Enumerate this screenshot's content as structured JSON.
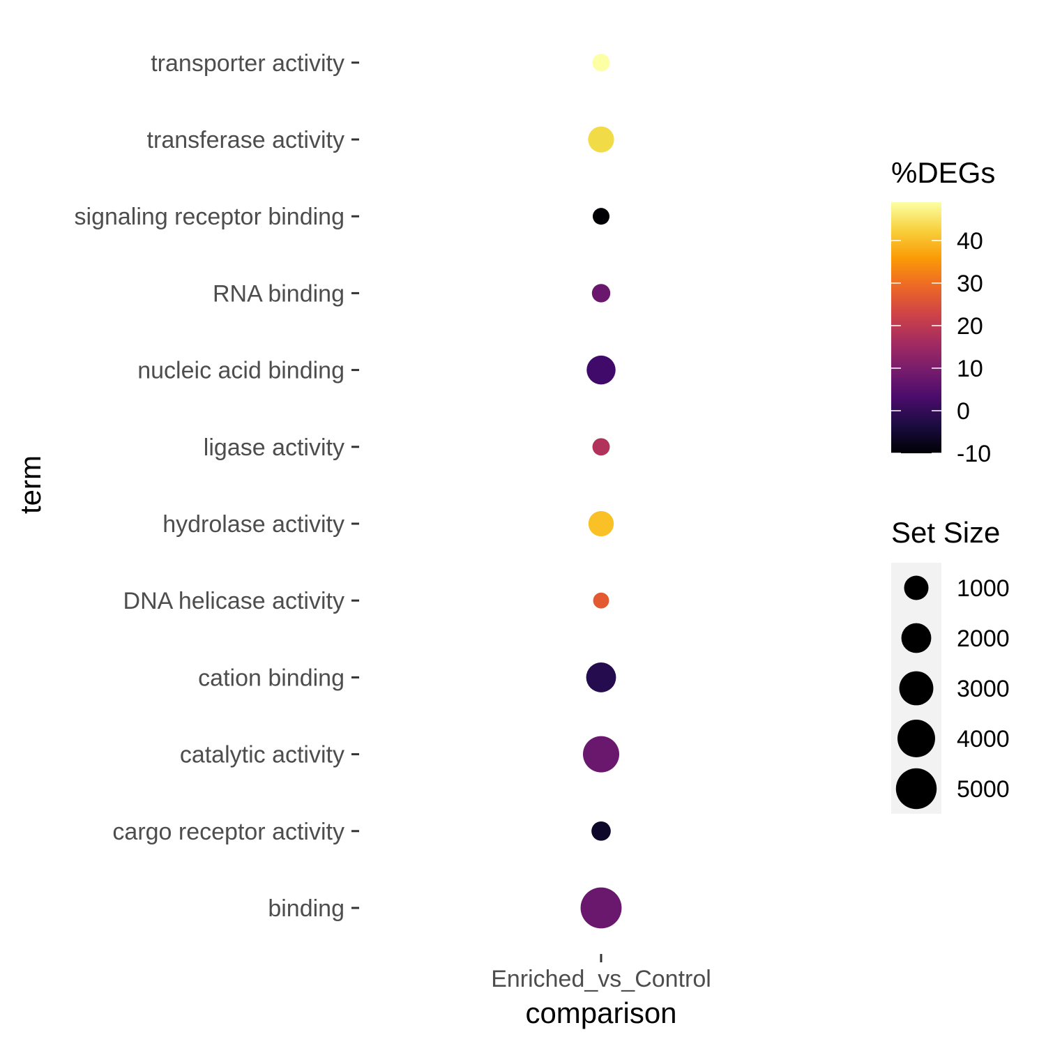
{
  "chart_data": {
    "type": "scatter",
    "x_categories": [
      "Enriched_vs_Control"
    ],
    "y_categories": [
      "binding",
      "cargo receptor activity",
      "catalytic activity",
      "cation binding",
      "DNA helicase activity",
      "hydrolase activity",
      "ligase activity",
      "nucleic acid binding",
      "RNA binding",
      "signaling receptor binding",
      "transferase activity",
      "transporter activity"
    ],
    "points": [
      {
        "x": "Enriched_vs_Control",
        "y": "binding",
        "pct_degs": 9,
        "set_size": 5100,
        "color": "#6a176e"
      },
      {
        "x": "Enriched_vs_Control",
        "y": "cargo receptor activity",
        "pct_degs": -6,
        "set_size": 380,
        "color": "#0d0829"
      },
      {
        "x": "Enriched_vs_Control",
        "y": "catalytic activity",
        "pct_degs": 9,
        "set_size": 3600,
        "color": "#6a176e"
      },
      {
        "x": "Enriched_vs_Control",
        "y": "cation binding",
        "pct_degs": 2,
        "set_size": 2000,
        "color": "#240c4f"
      },
      {
        "x": "Enriched_vs_Control",
        "y": "DNA helicase activity",
        "pct_degs": 28,
        "set_size": 130,
        "color": "#e35932"
      },
      {
        "x": "Enriched_vs_Control",
        "y": "hydrolase activity",
        "pct_degs": 42,
        "set_size": 1150,
        "color": "#fac127"
      },
      {
        "x": "Enriched_vs_Control",
        "y": "ligase activity",
        "pct_degs": 18,
        "set_size": 220,
        "color": "#b1325a"
      },
      {
        "x": "Enriched_vs_Control",
        "y": "nucleic acid binding",
        "pct_degs": 4,
        "set_size": 1800,
        "color": "#3f0a6a"
      },
      {
        "x": "Enriched_vs_Control",
        "y": "RNA binding",
        "pct_degs": 9,
        "set_size": 300,
        "color": "#6a176e"
      },
      {
        "x": "Enriched_vs_Control",
        "y": "signaling receptor binding",
        "pct_degs": -10,
        "set_size": 180,
        "color": "#000004"
      },
      {
        "x": "Enriched_vs_Control",
        "y": "transferase activity",
        "pct_degs": 45,
        "set_size": 1250,
        "color": "#f1db47"
      },
      {
        "x": "Enriched_vs_Control",
        "y": "transporter activity",
        "pct_degs": 49,
        "set_size": 230,
        "color": "#fcffa4"
      }
    ],
    "xlabel": "comparison",
    "ylabel": "term",
    "color_legend": {
      "title": "%DEGs",
      "ticks": [
        -10,
        0,
        10,
        20,
        30,
        40
      ],
      "range": [
        -10,
        49
      ],
      "palette": [
        "#000004",
        "#1b0c41",
        "#4a0c6b",
        "#781c6d",
        "#a52c60",
        "#cf4446",
        "#ed6925",
        "#fb9b06",
        "#f7d13d",
        "#fcffa4"
      ]
    },
    "size_legend": {
      "title": "Set Size",
      "breaks": [
        1000,
        2000,
        3000,
        4000,
        5000
      ],
      "labels": [
        "1000",
        "2000",
        "3000",
        "4000",
        "5000"
      ],
      "range": [
        130,
        5100
      ]
    },
    "grid": false,
    "legend_position": "right"
  }
}
